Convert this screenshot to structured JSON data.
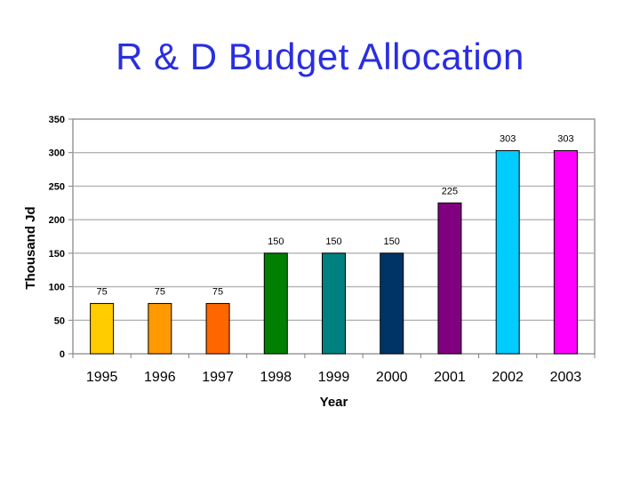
{
  "colors": {
    "title": "#2a2ee0",
    "plot_border": "#7f7f7f",
    "grid": "#b3b3b3"
  },
  "chart_data": {
    "type": "bar",
    "title": "R & D Budget Allocation",
    "xlabel": "Year",
    "ylabel": "Thousand Jd",
    "categories": [
      "1995",
      "1996",
      "1997",
      "1998",
      "1999",
      "2000",
      "2001",
      "2002",
      "2003"
    ],
    "values": [
      75,
      75,
      75,
      150,
      150,
      150,
      225,
      303,
      303
    ],
    "bar_colors": [
      "#ffcc00",
      "#ff9900",
      "#ff6600",
      "#008000",
      "#008080",
      "#003366",
      "#800080",
      "#00ccff",
      "#ff00ff"
    ],
    "ylim": [
      0,
      350
    ],
    "yticks": [
      0,
      50,
      100,
      150,
      200,
      250,
      300,
      350
    ],
    "grid": true,
    "legend": "none",
    "data_labels": true
  }
}
